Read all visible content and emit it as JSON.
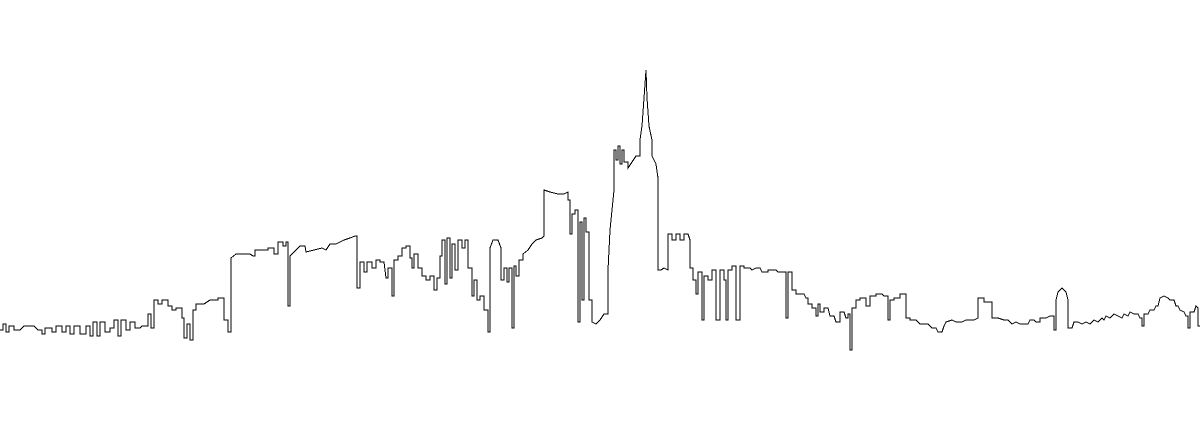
{
  "drawing": {
    "subject": "city-skyline-outline",
    "stroke_color": "#000000",
    "background_color": "#ffffff"
  }
}
